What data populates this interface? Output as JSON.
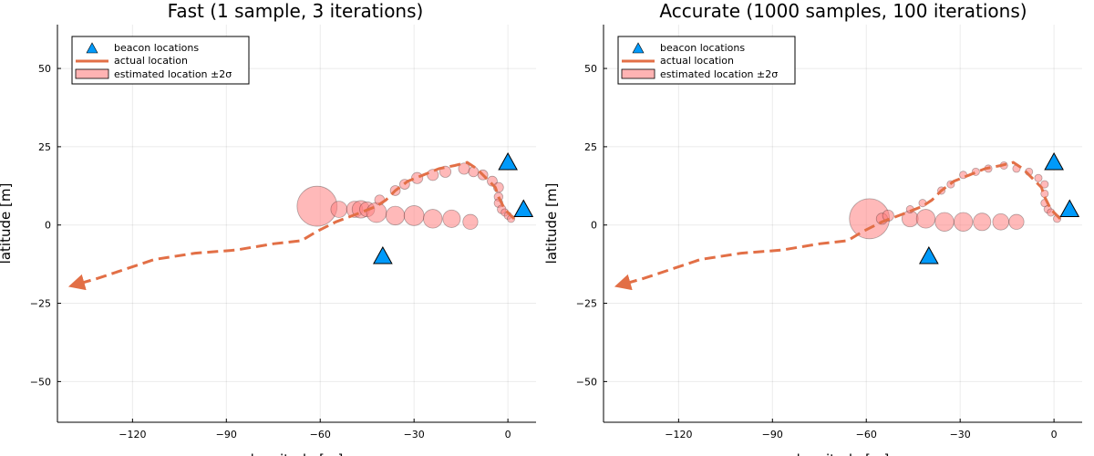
{
  "chart_data": [
    {
      "type": "scatter",
      "title": "Fast (1 sample, 3 iterations)",
      "xlabel": "longitude [m]",
      "ylabel": "latitude [m]",
      "xlim": [
        -144,
        9
      ],
      "ylim": [
        -63,
        64
      ],
      "xticks": [
        -120,
        -90,
        -60,
        -30,
        0
      ],
      "yticks": [
        -50,
        -25,
        0,
        25,
        50
      ],
      "grid": true,
      "legend_position": "top-left",
      "legend": [
        "beacon locations",
        "actual location",
        "estimated location ±2σ"
      ],
      "colors": {
        "beacon": "#009AFA",
        "actual": "#E26F46",
        "estimate": "#FF8080"
      },
      "beacons": [
        {
          "x": 0,
          "y": 20
        },
        {
          "x": 5,
          "y": 5
        },
        {
          "x": -40,
          "y": -10
        }
      ],
      "actual_path": [
        {
          "x": 2,
          "y": 2
        },
        {
          "x": -1,
          "y": 5
        },
        {
          "x": -3,
          "y": 9
        },
        {
          "x": -4,
          "y": 12
        },
        {
          "x": -7,
          "y": 15
        },
        {
          "x": -10,
          "y": 18
        },
        {
          "x": -13,
          "y": 20
        },
        {
          "x": -17,
          "y": 19
        },
        {
          "x": -22,
          "y": 18
        },
        {
          "x": -27,
          "y": 16
        },
        {
          "x": -32,
          "y": 14
        },
        {
          "x": -36,
          "y": 11
        },
        {
          "x": -39,
          "y": 8
        },
        {
          "x": -42,
          "y": 6
        },
        {
          "x": -47,
          "y": 4
        },
        {
          "x": -55,
          "y": 1
        },
        {
          "x": -61,
          "y": -2
        },
        {
          "x": -66,
          "y": -5
        },
        {
          "x": -75,
          "y": -6
        },
        {
          "x": -87,
          "y": -8
        },
        {
          "x": -100,
          "y": -9
        },
        {
          "x": -113,
          "y": -11
        },
        {
          "x": -122,
          "y": -14
        },
        {
          "x": -131,
          "y": -17
        },
        {
          "x": -138,
          "y": -19
        }
      ],
      "estimates": [
        {
          "x": -61,
          "y": 6,
          "sd": 3.2
        },
        {
          "x": -54,
          "y": 5,
          "sd": 1.3
        },
        {
          "x": -49,
          "y": 5,
          "sd": 1.3
        },
        {
          "x": -47,
          "y": 5,
          "sd": 1.4
        },
        {
          "x": -45,
          "y": 5,
          "sd": 1.2
        },
        {
          "x": -42,
          "y": 4,
          "sd": 1.6
        },
        {
          "x": -36,
          "y": 3,
          "sd": 1.5
        },
        {
          "x": -30,
          "y": 3,
          "sd": 1.6
        },
        {
          "x": -24,
          "y": 2,
          "sd": 1.5
        },
        {
          "x": -18,
          "y": 2,
          "sd": 1.4
        },
        {
          "x": -12,
          "y": 1,
          "sd": 1.2
        },
        {
          "x": -41,
          "y": 8,
          "sd": 0.8
        },
        {
          "x": -36,
          "y": 11,
          "sd": 0.8
        },
        {
          "x": -33,
          "y": 13,
          "sd": 0.8
        },
        {
          "x": -29,
          "y": 15,
          "sd": 0.9
        },
        {
          "x": -24,
          "y": 16,
          "sd": 0.9
        },
        {
          "x": -20,
          "y": 17,
          "sd": 0.9
        },
        {
          "x": -14,
          "y": 18,
          "sd": 0.9
        },
        {
          "x": -11,
          "y": 17,
          "sd": 0.8
        },
        {
          "x": -8,
          "y": 16,
          "sd": 0.8
        },
        {
          "x": -5,
          "y": 14,
          "sd": 0.8
        },
        {
          "x": -3,
          "y": 12,
          "sd": 0.8
        },
        {
          "x": -3,
          "y": 9,
          "sd": 0.7
        },
        {
          "x": -3,
          "y": 7,
          "sd": 0.7
        },
        {
          "x": -2,
          "y": 5,
          "sd": 0.7
        },
        {
          "x": -1,
          "y": 4,
          "sd": 0.6
        },
        {
          "x": 0,
          "y": 3,
          "sd": 0.6
        },
        {
          "x": 1,
          "y": 2,
          "sd": 0.6
        }
      ]
    },
    {
      "type": "scatter",
      "title": "Accurate (1000 samples, 100 iterations)",
      "xlabel": "longitude [m]",
      "ylabel": "latitude [m]",
      "xlim": [
        -144,
        9
      ],
      "ylim": [
        -63,
        64
      ],
      "xticks": [
        -120,
        -90,
        -60,
        -30,
        0
      ],
      "yticks": [
        -50,
        -25,
        0,
        25,
        50
      ],
      "grid": true,
      "legend_position": "top-left",
      "legend": [
        "beacon locations",
        "actual location",
        "estimated location ±2σ"
      ],
      "colors": {
        "beacon": "#009AFA",
        "actual": "#E26F46",
        "estimate": "#FF8080"
      },
      "beacons": [
        {
          "x": 0,
          "y": 20
        },
        {
          "x": 5,
          "y": 5
        },
        {
          "x": -40,
          "y": -10
        }
      ],
      "actual_path": [
        {
          "x": 2,
          "y": 2
        },
        {
          "x": -1,
          "y": 5
        },
        {
          "x": -3,
          "y": 9
        },
        {
          "x": -4,
          "y": 12
        },
        {
          "x": -7,
          "y": 15
        },
        {
          "x": -10,
          "y": 18
        },
        {
          "x": -13,
          "y": 20
        },
        {
          "x": -17,
          "y": 19
        },
        {
          "x": -22,
          "y": 18
        },
        {
          "x": -27,
          "y": 16
        },
        {
          "x": -32,
          "y": 14
        },
        {
          "x": -36,
          "y": 11
        },
        {
          "x": -39,
          "y": 8
        },
        {
          "x": -42,
          "y": 6
        },
        {
          "x": -47,
          "y": 4
        },
        {
          "x": -55,
          "y": 1
        },
        {
          "x": -61,
          "y": -2
        },
        {
          "x": -66,
          "y": -5
        },
        {
          "x": -75,
          "y": -6
        },
        {
          "x": -87,
          "y": -8
        },
        {
          "x": -100,
          "y": -9
        },
        {
          "x": -113,
          "y": -11
        },
        {
          "x": -122,
          "y": -14
        },
        {
          "x": -131,
          "y": -17
        },
        {
          "x": -138,
          "y": -19
        }
      ],
      "estimates": [
        {
          "x": -59,
          "y": 2,
          "sd": 3.2
        },
        {
          "x": -55,
          "y": 2,
          "sd": 0.9
        },
        {
          "x": -53,
          "y": 3,
          "sd": 0.9
        },
        {
          "x": -46,
          "y": 2,
          "sd": 1.3
        },
        {
          "x": -41,
          "y": 2,
          "sd": 1.5
        },
        {
          "x": -35,
          "y": 1,
          "sd": 1.5
        },
        {
          "x": -29,
          "y": 1,
          "sd": 1.5
        },
        {
          "x": -23,
          "y": 1,
          "sd": 1.4
        },
        {
          "x": -17,
          "y": 1,
          "sd": 1.3
        },
        {
          "x": -12,
          "y": 1,
          "sd": 1.2
        },
        {
          "x": -46,
          "y": 5,
          "sd": 0.6
        },
        {
          "x": -42,
          "y": 7,
          "sd": 0.6
        },
        {
          "x": -36,
          "y": 11,
          "sd": 0.6
        },
        {
          "x": -33,
          "y": 13,
          "sd": 0.6
        },
        {
          "x": -29,
          "y": 16,
          "sd": 0.6
        },
        {
          "x": -25,
          "y": 17,
          "sd": 0.6
        },
        {
          "x": -21,
          "y": 18,
          "sd": 0.6
        },
        {
          "x": -16,
          "y": 19,
          "sd": 0.6
        },
        {
          "x": -12,
          "y": 18,
          "sd": 0.6
        },
        {
          "x": -8,
          "y": 17,
          "sd": 0.6
        },
        {
          "x": -5,
          "y": 15,
          "sd": 0.6
        },
        {
          "x": -3,
          "y": 13,
          "sd": 0.6
        },
        {
          "x": -3,
          "y": 10,
          "sd": 0.6
        },
        {
          "x": -3,
          "y": 7,
          "sd": 0.6
        },
        {
          "x": -2,
          "y": 5,
          "sd": 0.6
        },
        {
          "x": -1,
          "y": 4,
          "sd": 0.6
        },
        {
          "x": 1,
          "y": 2,
          "sd": 0.6
        }
      ]
    }
  ]
}
